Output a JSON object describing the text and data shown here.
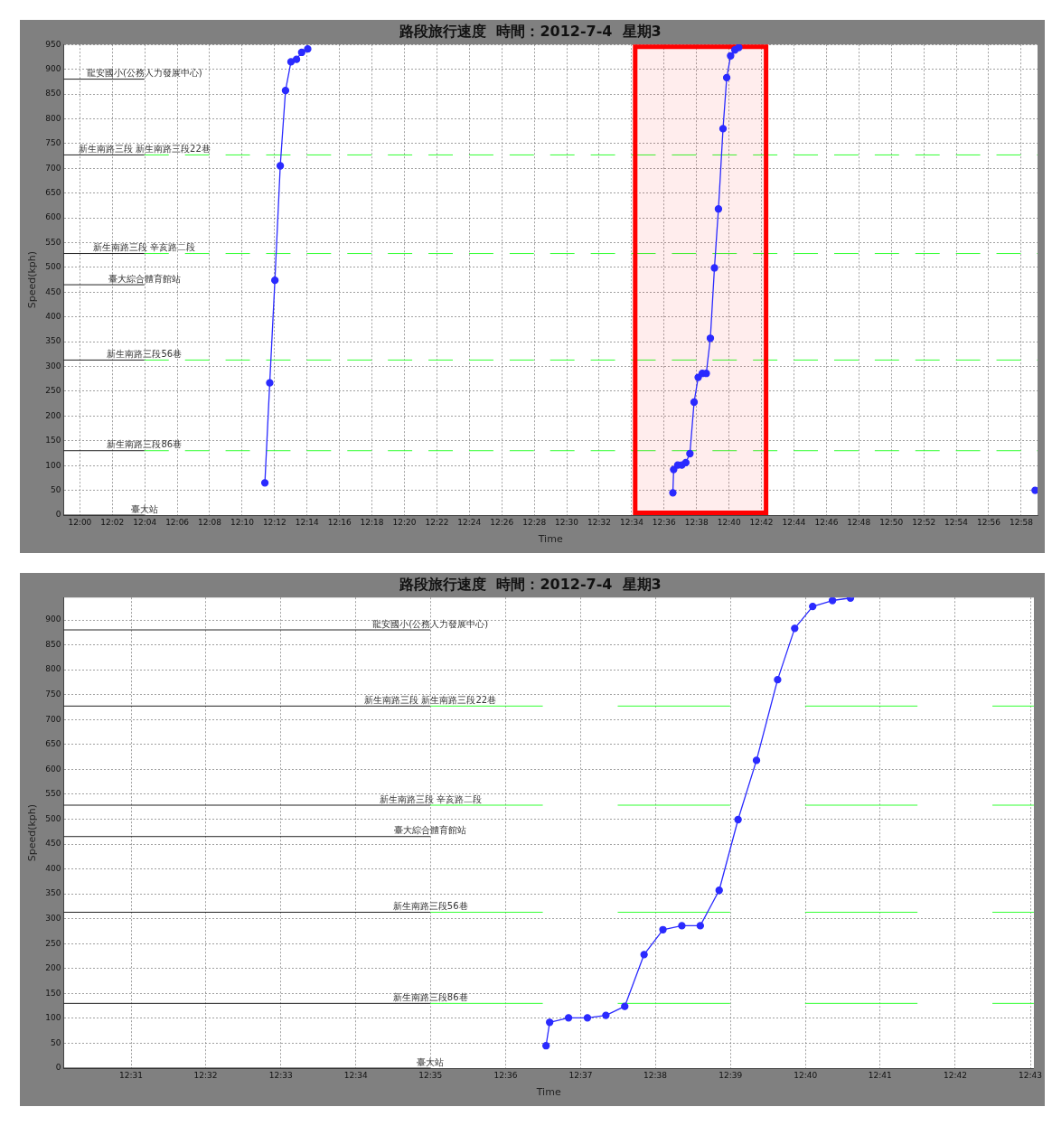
{
  "chart_data": [
    {
      "type": "line",
      "title": "路段旅行速度  時間：2012-7-4  星期3",
      "xlabel": "Time",
      "ylabel": "Speed(kph)",
      "xlim": [
        11.9833,
        12.9835
      ],
      "xticks": [
        {
          "value": 12.0,
          "label": "12:00"
        },
        {
          "value": 12.0333,
          "label": "12:02"
        },
        {
          "value": 12.0667,
          "label": "12:04"
        },
        {
          "value": 12.1,
          "label": "12:06"
        },
        {
          "value": 12.1333,
          "label": "12:08"
        },
        {
          "value": 12.1667,
          "label": "12:10"
        },
        {
          "value": 12.2,
          "label": "12:12"
        },
        {
          "value": 12.2333,
          "label": "12:14"
        },
        {
          "value": 12.2667,
          "label": "12:16"
        },
        {
          "value": 12.3,
          "label": "12:18"
        },
        {
          "value": 12.3333,
          "label": "12:20"
        },
        {
          "value": 12.3667,
          "label": "12:22"
        },
        {
          "value": 12.4,
          "label": "12:24"
        },
        {
          "value": 12.4333,
          "label": "12:26"
        },
        {
          "value": 12.4667,
          "label": "12:28"
        },
        {
          "value": 12.5,
          "label": "12:30"
        },
        {
          "value": 12.5333,
          "label": "12:32"
        },
        {
          "value": 12.5667,
          "label": "12:34"
        },
        {
          "value": 12.6,
          "label": "12:36"
        },
        {
          "value": 12.6333,
          "label": "12:38"
        },
        {
          "value": 12.6667,
          "label": "12:40"
        },
        {
          "value": 12.7,
          "label": "12:42"
        },
        {
          "value": 12.7333,
          "label": "12:44"
        },
        {
          "value": 12.7667,
          "label": "12:46"
        },
        {
          "value": 12.8,
          "label": "12:48"
        },
        {
          "value": 12.8333,
          "label": "12:50"
        },
        {
          "value": 12.8667,
          "label": "12:52"
        },
        {
          "value": 12.9,
          "label": "12:54"
        },
        {
          "value": 12.9333,
          "label": "12:56"
        },
        {
          "value": 12.9667,
          "label": "12:58"
        }
      ],
      "ylim": [
        0,
        950
      ],
      "yticks": [
        0,
        50,
        100,
        150,
        200,
        250,
        300,
        350,
        400,
        450,
        500,
        550,
        600,
        650,
        700,
        750,
        800,
        850,
        900,
        950
      ],
      "grid": true,
      "marker": "circle",
      "series": [
        {
          "color": "#2a2aff",
          "x": [
            12.19,
            12.195,
            12.2003,
            12.2058,
            12.2112,
            12.2168,
            12.2225,
            12.2278,
            12.234,
            12.235,
            12.609,
            12.6098,
            12.614,
            12.6182,
            12.6223,
            12.6265,
            12.6308,
            12.635,
            12.6392,
            12.6433,
            12.6475,
            12.6517,
            12.6558,
            12.6605,
            12.6643,
            12.6683,
            12.6727,
            12.6767,
            12.677,
            12.981
          ],
          "values": [
            65,
            267,
            474,
            705,
            857,
            915,
            920,
            934,
            941,
            null,
            45,
            92,
            101,
            101,
            106,
            124,
            228,
            278,
            286,
            286,
            357,
            499,
            618,
            780,
            883,
            927,
            939,
            944,
            null,
            50
          ]
        }
      ],
      "ref_lines": [
        {
          "axis": "y",
          "value": 880,
          "label": "龍安國小(公務人力發展中心)"
        },
        {
          "axis": "y",
          "value": 727,
          "label": "新生南路三段 新生南路三段22巷",
          "color": "#33ff33",
          "line_style": "dashed"
        },
        {
          "axis": "y",
          "value": 528,
          "label": "新生南路三段 辛亥路二段",
          "color": "#33ff33",
          "line_style": "dashed"
        },
        {
          "axis": "y",
          "value": 465,
          "label": "臺大綜合體育館站"
        },
        {
          "axis": "y",
          "value": 313,
          "label": "新生南路三段56巷",
          "color": "#33ff33",
          "line_style": "dashed"
        },
        {
          "axis": "y",
          "value": 130,
          "label": "新生南路三段86巷",
          "color": "#33ff33",
          "line_style": "dashed"
        },
        {
          "axis": "y",
          "value": 0,
          "label": "臺大站"
        }
      ],
      "bands": [
        {
          "axis": "x",
          "from": 12.5703,
          "to": 12.7047,
          "color": "#ff0000"
        }
      ]
    },
    {
      "type": "line",
      "title": "路段旅行速度  時間：2012-7-4  星期3",
      "xlabel": "Time",
      "ylabel": "Speed(kph)",
      "xlim": [
        12.5017,
        12.7175
      ],
      "xticks": [
        {
          "value": 12.5167,
          "label": "12:31"
        },
        {
          "value": 12.5333,
          "label": "12:32"
        },
        {
          "value": 12.55,
          "label": "12:33"
        },
        {
          "value": 12.5667,
          "label": "12:34"
        },
        {
          "value": 12.5833,
          "label": "12:35"
        },
        {
          "value": 12.6,
          "label": "12:36"
        },
        {
          "value": 12.6167,
          "label": "12:37"
        },
        {
          "value": 12.6333,
          "label": "12:38"
        },
        {
          "value": 12.65,
          "label": "12:39"
        },
        {
          "value": 12.6667,
          "label": "12:40"
        },
        {
          "value": 12.6833,
          "label": "12:41"
        },
        {
          "value": 12.7,
          "label": "12:42"
        },
        {
          "value": 12.7167,
          "label": "12:43"
        }
      ],
      "ylim": [
        0,
        945
      ],
      "yticks": [
        0,
        50,
        100,
        150,
        200,
        250,
        300,
        350,
        400,
        450,
        500,
        550,
        600,
        650,
        700,
        750,
        800,
        850,
        900
      ],
      "grid": true,
      "marker": "circle",
      "series": [
        {
          "color": "#2a2aff",
          "x": [
            12.609,
            12.6098,
            12.614,
            12.6182,
            12.6223,
            12.6265,
            12.6308,
            12.635,
            12.6392,
            12.6433,
            12.6475,
            12.6517,
            12.6558,
            12.6605,
            12.6643,
            12.6683,
            12.6727,
            12.6767
          ],
          "values": [
            45,
            92,
            101,
            101,
            106,
            124,
            228,
            278,
            286,
            286,
            357,
            499,
            618,
            780,
            883,
            927,
            939,
            944
          ]
        }
      ],
      "ref_lines": [
        {
          "axis": "y",
          "value": 880,
          "label": "龍安國小(公務人力發展中心)"
        },
        {
          "axis": "y",
          "value": 727,
          "label": "新生南路三段 新生南路三段22巷",
          "color": "#33ff33",
          "line_style": "dashed"
        },
        {
          "axis": "y",
          "value": 528,
          "label": "新生南路三段 辛亥路二段",
          "color": "#33ff33",
          "line_style": "dashed"
        },
        {
          "axis": "y",
          "value": 465,
          "label": "臺大綜合體育館站"
        },
        {
          "axis": "y",
          "value": 313,
          "label": "新生南路三段56巷",
          "color": "#33ff33",
          "line_style": "dashed"
        },
        {
          "axis": "y",
          "value": 130,
          "label": "新生南路三段86巷",
          "color": "#33ff33",
          "line_style": "dashed"
        },
        {
          "axis": "y",
          "value": 0,
          "label": "臺大站"
        }
      ]
    }
  ]
}
